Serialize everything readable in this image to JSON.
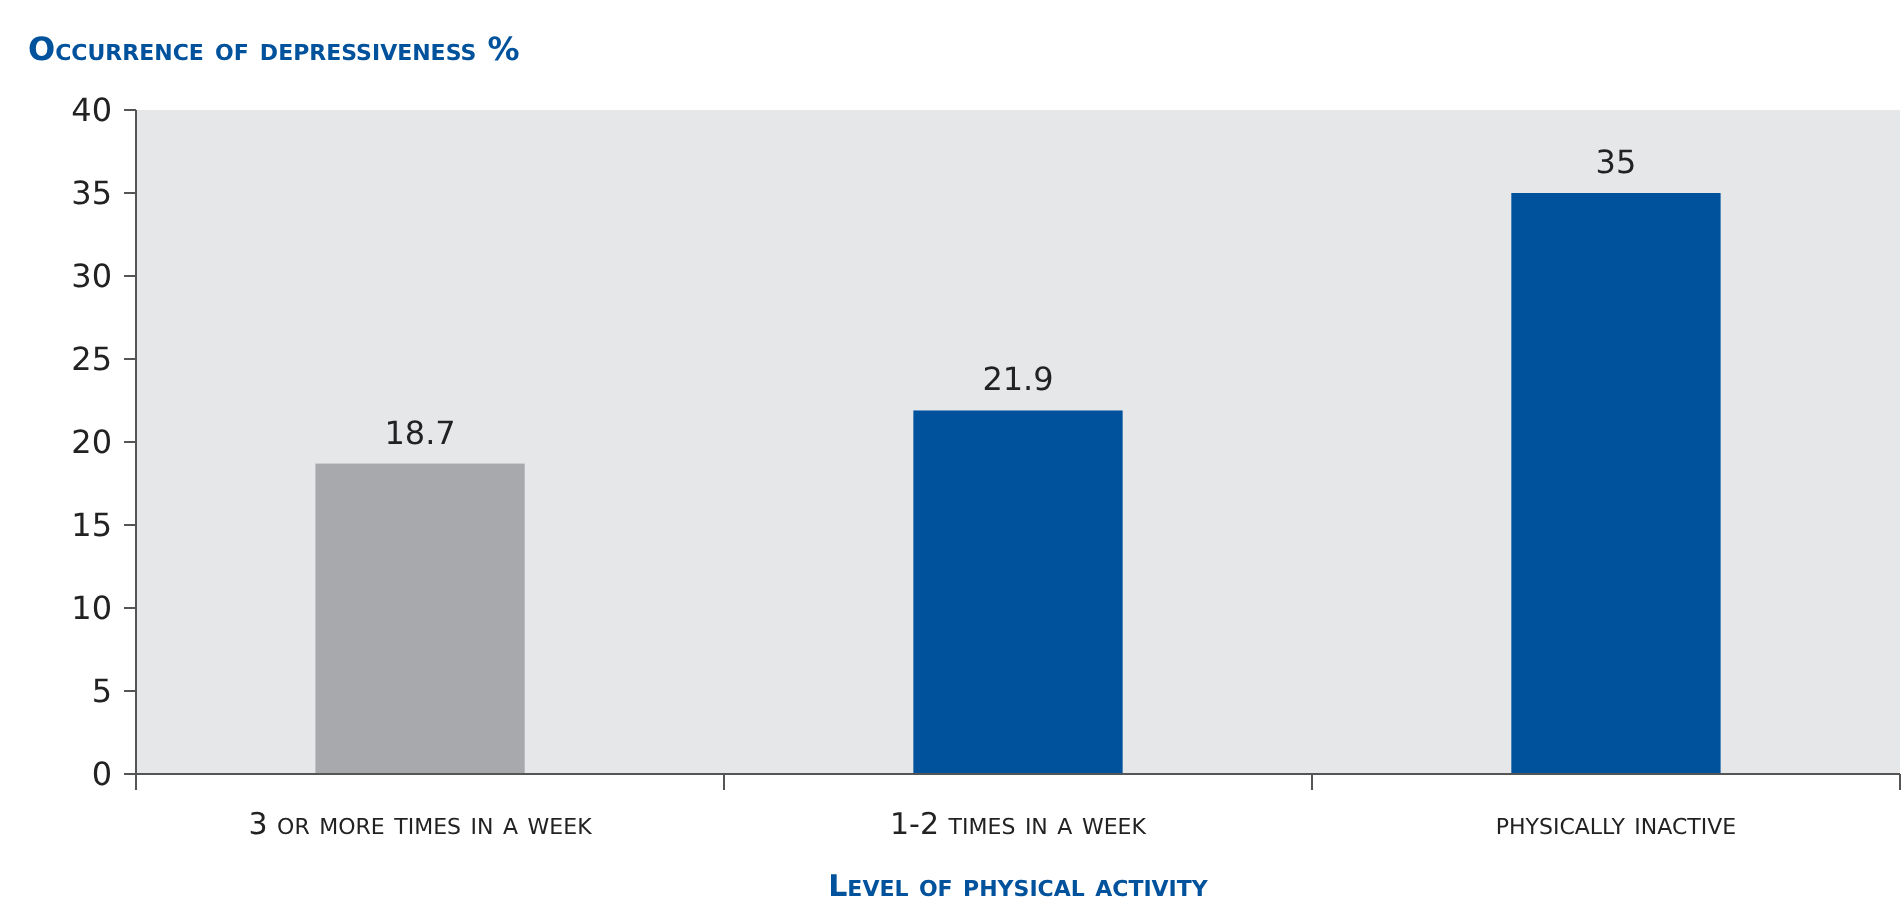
{
  "chart_data": {
    "type": "bar",
    "ylabel": "Occurrence of depressiveness %",
    "xlabel": "Level of physical activity",
    "categories": [
      "3 or more times in a week",
      "1-2 times in a week",
      "physically inactive"
    ],
    "values": [
      18.7,
      21.9,
      35
    ],
    "colors": [
      "#a7a9ac",
      "#00529c",
      "#00529c"
    ],
    "ylim": [
      0,
      40
    ],
    "yticks": [
      0,
      5,
      10,
      15,
      20,
      25,
      30,
      35,
      40
    ],
    "grid": false,
    "data_labels": true
  }
}
